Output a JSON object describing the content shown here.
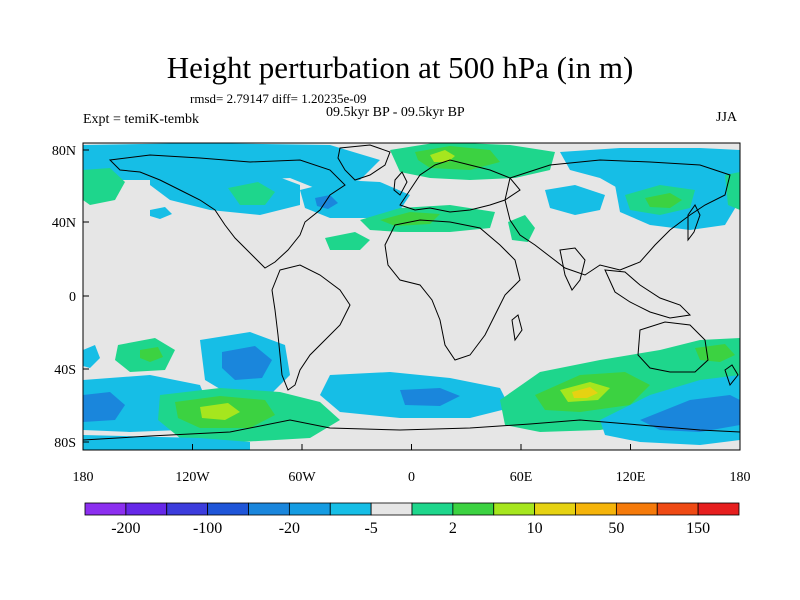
{
  "title": "Height perturbation at 500 hPa (in m)",
  "stats": "rmsd= 2.79147 diff= 1.20235e-09",
  "subtitle": "09.5kyr BP - 09.5kyr BP",
  "experiment": "Expt = temiK-tembk",
  "season": "JJA",
  "map": {
    "projection": "cylindrical equidistant",
    "lat_range": [
      -85,
      85
    ],
    "lon_range": [
      -180,
      180
    ],
    "lat_labels": [
      "80N",
      "40N",
      "0",
      "40S",
      "80S"
    ],
    "lon_labels": [
      "180",
      "120W",
      "60W",
      "0",
      "60E",
      "120E",
      "180"
    ]
  },
  "colorbar": {
    "colors": [
      "#8c2ff0",
      "#6628e8",
      "#3c3cdc",
      "#1f55d8",
      "#1a86dc",
      "#159ce2",
      "#16bee6",
      "#e6e6e6",
      "#1ed68c",
      "#3cd241",
      "#a6e61e",
      "#e6d212",
      "#f5b40a",
      "#f57a0a",
      "#ef4a14",
      "#e61e1e"
    ],
    "labels": [
      "-200",
      "-100",
      "-20",
      "-5",
      "2",
      "10",
      "50",
      "150"
    ]
  },
  "legend_names": {
    "land": "coastline",
    "neutral": "#e6e6e6"
  }
}
